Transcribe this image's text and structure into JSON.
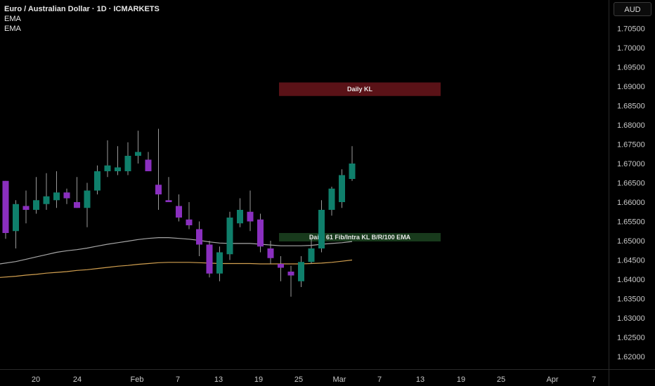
{
  "legend": {
    "symbol": "Euro / Australian Dollar · 1D · ICMARKETS",
    "indicator1": "EMA",
    "indicator2": "EMA"
  },
  "currency_button": "AUD",
  "colors": {
    "background": "#000000",
    "up_candle": "#0f7f6b",
    "down_candle": "#8a2fbf",
    "wick": "#9a9a9a",
    "ema_fast": "#a7a7a7",
    "ema_slow": "#d2a050",
    "kl_zone": "#5a1217",
    "fib_zone": "#183a1c"
  },
  "chart_data": {
    "type": "candlestick",
    "title": "Euro / Australian Dollar · 1D · ICMARKETS",
    "y_axis_labels": [
      "1.70500",
      "1.70000",
      "1.69500",
      "1.69000",
      "1.68500",
      "1.68000",
      "1.67500",
      "1.67000",
      "1.66500",
      "1.66000",
      "1.65500",
      "1.65000",
      "1.64500",
      "1.64000",
      "1.63500",
      "1.63000",
      "1.62500",
      "1.62000"
    ],
    "ylim": [
      1.6185,
      1.7095
    ],
    "x_axis_labels": [
      "20",
      "24",
      "Feb",
      "7",
      "13",
      "19",
      "25",
      "Mar",
      "7",
      "13",
      "19",
      "25",
      "Apr",
      "7"
    ],
    "candles": [
      {
        "o": 1.6655,
        "h": 1.6655,
        "l": 1.6505,
        "c": 1.652
      },
      {
        "o": 1.6525,
        "h": 1.6605,
        "l": 1.648,
        "c": 1.6595
      },
      {
        "o": 1.659,
        "h": 1.663,
        "l": 1.6545,
        "c": 1.658
      },
      {
        "o": 1.658,
        "h": 1.6665,
        "l": 1.657,
        "c": 1.6605
      },
      {
        "o": 1.6595,
        "h": 1.6675,
        "l": 1.658,
        "c": 1.6615
      },
      {
        "o": 1.6605,
        "h": 1.668,
        "l": 1.6585,
        "c": 1.6625
      },
      {
        "o": 1.6625,
        "h": 1.6635,
        "l": 1.6595,
        "c": 1.661
      },
      {
        "o": 1.66,
        "h": 1.6665,
        "l": 1.6585,
        "c": 1.6585
      },
      {
        "o": 1.6585,
        "h": 1.665,
        "l": 1.6535,
        "c": 1.663
      },
      {
        "o": 1.663,
        "h": 1.6695,
        "l": 1.662,
        "c": 1.668
      },
      {
        "o": 1.668,
        "h": 1.676,
        "l": 1.6665,
        "c": 1.6695
      },
      {
        "o": 1.668,
        "h": 1.6745,
        "l": 1.667,
        "c": 1.669
      },
      {
        "o": 1.668,
        "h": 1.6755,
        "l": 1.667,
        "c": 1.672
      },
      {
        "o": 1.672,
        "h": 1.6785,
        "l": 1.67,
        "c": 1.673
      },
      {
        "o": 1.671,
        "h": 1.673,
        "l": 1.668,
        "c": 1.668
      },
      {
        "o": 1.6645,
        "h": 1.679,
        "l": 1.658,
        "c": 1.662
      },
      {
        "o": 1.6605,
        "h": 1.6665,
        "l": 1.66,
        "c": 1.66
      },
      {
        "o": 1.659,
        "h": 1.662,
        "l": 1.655,
        "c": 1.656
      },
      {
        "o": 1.6555,
        "h": 1.66,
        "l": 1.653,
        "c": 1.654
      },
      {
        "o": 1.653,
        "h": 1.655,
        "l": 1.646,
        "c": 1.649
      },
      {
        "o": 1.649,
        "h": 1.65,
        "l": 1.6405,
        "c": 1.6415
      },
      {
        "o": 1.6415,
        "h": 1.6485,
        "l": 1.6395,
        "c": 1.647
      },
      {
        "o": 1.6465,
        "h": 1.6575,
        "l": 1.645,
        "c": 1.656
      },
      {
        "o": 1.6545,
        "h": 1.661,
        "l": 1.6535,
        "c": 1.658
      },
      {
        "o": 1.6575,
        "h": 1.663,
        "l": 1.6525,
        "c": 1.655
      },
      {
        "o": 1.6555,
        "h": 1.657,
        "l": 1.647,
        "c": 1.6485
      },
      {
        "o": 1.648,
        "h": 1.65,
        "l": 1.644,
        "c": 1.6455
      },
      {
        "o": 1.644,
        "h": 1.646,
        "l": 1.6395,
        "c": 1.643
      },
      {
        "o": 1.642,
        "h": 1.6435,
        "l": 1.6355,
        "c": 1.641
      },
      {
        "o": 1.6395,
        "h": 1.646,
        "l": 1.638,
        "c": 1.6445
      },
      {
        "o": 1.6445,
        "h": 1.651,
        "l": 1.644,
        "c": 1.648
      },
      {
        "o": 1.648,
        "h": 1.6605,
        "l": 1.647,
        "c": 1.658
      },
      {
        "o": 1.658,
        "h": 1.664,
        "l": 1.6565,
        "c": 1.6635
      },
      {
        "o": 1.66,
        "h": 1.6685,
        "l": 1.6585,
        "c": 1.667
      },
      {
        "o": 1.666,
        "h": 1.6745,
        "l": 1.6655,
        "c": 1.67
      }
    ],
    "ema_fast": [
      1.644,
      1.6446,
      1.6452,
      1.6458,
      1.6464,
      1.647,
      1.6474,
      1.6477,
      1.6481,
      1.6486,
      1.6491,
      1.6495,
      1.6499,
      1.6503,
      1.6506,
      1.6508,
      1.6508,
      1.6506,
      1.6504,
      1.6501,
      1.6497,
      1.6494,
      1.6493,
      1.6493,
      1.6493,
      1.6491,
      1.6489,
      1.6487,
      1.6487,
      1.6487,
      1.6488,
      1.6491,
      1.6493,
      1.6495,
      1.6498
    ],
    "ema_slow": [
      1.6405,
      1.6408,
      1.6411,
      1.6413,
      1.6416,
      1.6418,
      1.642,
      1.6423,
      1.6425,
      1.6428,
      1.6431,
      1.6434,
      1.6436,
      1.6439,
      1.6441,
      1.6443,
      1.6444,
      1.6444,
      1.6444,
      1.6443,
      1.6442,
      1.6441,
      1.6441,
      1.6441,
      1.6441,
      1.644,
      1.644,
      1.644,
      1.644,
      1.644,
      1.6441,
      1.6442,
      1.6444,
      1.6447,
      1.645
    ],
    "zones": [
      {
        "label": "Daily KL",
        "top": 1.691,
        "bottom": 1.6875,
        "start_index": 30,
        "end_index": 45
      },
      {
        "label": "Daily 61 Fib/Intra KL B/R/100 EMA",
        "top": 1.652,
        "bottom": 1.6502,
        "start_index": 30,
        "end_index": 45
      }
    ]
  }
}
